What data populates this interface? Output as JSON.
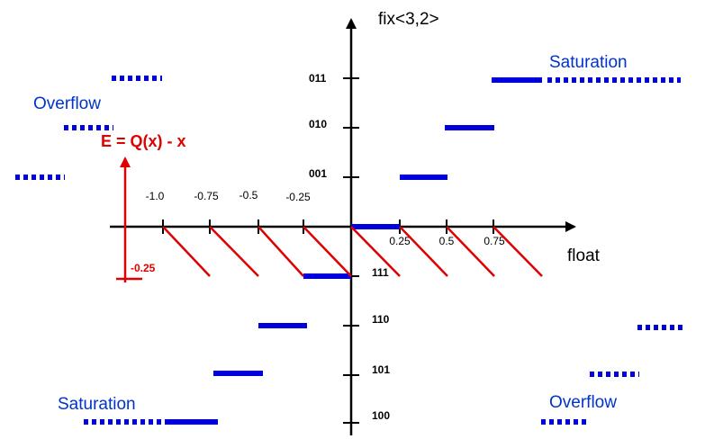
{
  "y_axis_title": "fix<3,2>",
  "x_axis_title": "float",
  "error_formula": "E = Q(x) - x",
  "error_tick": "-0.25",
  "x_ticks_negative": [
    "-1.0",
    "-0.75",
    "-0.5",
    "-0.25"
  ],
  "x_ticks_positive": [
    "0.25",
    "0.5",
    "0.75"
  ],
  "codes": [
    "011",
    "010",
    "001",
    "111",
    "110",
    "101",
    "100"
  ],
  "region_labels": {
    "saturation_top_right": "Saturation",
    "overflow_top_left": "Overflow",
    "saturation_bottom_left": "Saturation",
    "overflow_bottom_right": "Overflow"
  },
  "colors": {
    "quantizer": "#0000dd",
    "error": "#e00000",
    "axis": "#000000",
    "label_blue": "#0033cc"
  }
}
